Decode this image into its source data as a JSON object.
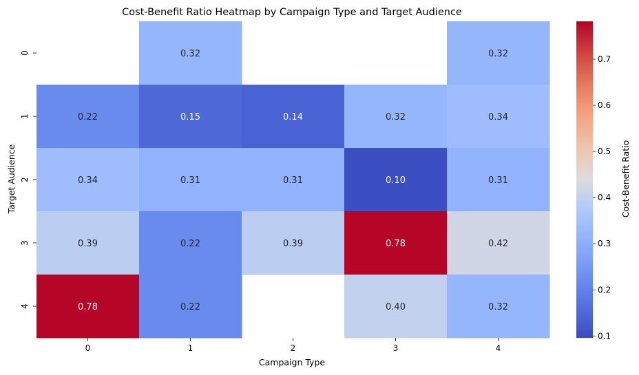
{
  "chart_data": {
    "type": "heatmap",
    "title": "Cost-Benefit Ratio Heatmap by Campaign Type and Target Audience",
    "xlabel": "Campaign Type",
    "ylabel": "Target Audience",
    "colorbar_label": "Cost-Benefit Ratio",
    "colormap": "coolwarm",
    "x_categories": [
      "0",
      "1",
      "2",
      "3",
      "4"
    ],
    "y_categories": [
      "0",
      "1",
      "2",
      "3",
      "4"
    ],
    "values": [
      [
        null,
        0.32,
        null,
        null,
        0.32
      ],
      [
        0.22,
        0.15,
        0.14,
        0.32,
        0.34
      ],
      [
        0.34,
        0.31,
        0.31,
        0.1,
        0.31
      ],
      [
        0.39,
        0.22,
        0.39,
        0.78,
        0.42
      ],
      [
        0.78,
        0.22,
        null,
        0.4,
        0.32
      ]
    ],
    "vmin": 0.096,
    "vmax": 0.782,
    "colorbar_ticks": [
      "0.1",
      "0.2",
      "0.3",
      "0.4",
      "0.5",
      "0.6",
      "0.7"
    ],
    "missing_cells_shown_as": "blank"
  }
}
